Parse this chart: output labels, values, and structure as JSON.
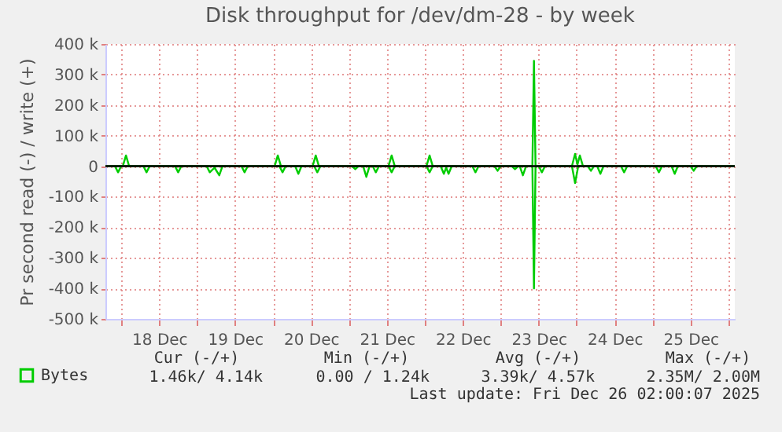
{
  "chart_data": {
    "type": "line",
    "title": "Disk throughput for /dev/dm-28 - by week",
    "ylabel": "Pr second read (-) / write (+)",
    "xlim": [
      "2025-12-17T19:00",
      "2025-12-26T02:00"
    ],
    "xticks": [
      {
        "value": "2025-12-18T00:00",
        "label": null
      },
      {
        "value": "2025-12-18T12:00",
        "label": "18 Dec"
      },
      {
        "value": "2025-12-19T00:00",
        "label": null
      },
      {
        "value": "2025-12-19T12:00",
        "label": "19 Dec"
      },
      {
        "value": "2025-12-20T00:00",
        "label": null
      },
      {
        "value": "2025-12-20T12:00",
        "label": "20 Dec"
      },
      {
        "value": "2025-12-21T00:00",
        "label": null
      },
      {
        "value": "2025-12-21T12:00",
        "label": "21 Dec"
      },
      {
        "value": "2025-12-22T00:00",
        "label": null
      },
      {
        "value": "2025-12-22T12:00",
        "label": "22 Dec"
      },
      {
        "value": "2025-12-23T00:00",
        "label": null
      },
      {
        "value": "2025-12-23T12:00",
        "label": "23 Dec"
      },
      {
        "value": "2025-12-24T00:00",
        "label": null
      },
      {
        "value": "2025-12-24T12:00",
        "label": "24 Dec"
      },
      {
        "value": "2025-12-25T00:00",
        "label": null
      },
      {
        "value": "2025-12-25T12:00",
        "label": "25 Dec"
      },
      {
        "value": "2025-12-26T00:00",
        "label": null
      }
    ],
    "ylim": [
      -500000,
      400000
    ],
    "yticks": [
      {
        "value": -500000,
        "label": "-500 k"
      },
      {
        "value": -400000,
        "label": "-400 k"
      },
      {
        "value": -300000,
        "label": "-300 k"
      },
      {
        "value": -200000,
        "label": "-200 k"
      },
      {
        "value": -100000,
        "label": "-100 k"
      },
      0,
      {
        "value": 100000,
        "label": "100 k"
      },
      {
        "value": 200000,
        "label": "200 k"
      },
      {
        "value": 300000,
        "label": "300 k"
      },
      {
        "value": 400000,
        "label": "400 k"
      }
    ],
    "grid": true,
    "legend": "bottom left",
    "series": [
      {
        "name": "Bytes",
        "color": "#00cc00",
        "x": [
          "2025-12-17T19:00",
          "2025-12-18T00:30",
          "2025-12-18T01:30",
          "2025-12-18T02:30",
          "2025-12-20T00:30",
          "2025-12-20T01:30",
          "2025-12-20T02:30",
          "2025-12-20T12:30",
          "2025-12-20T13:30",
          "2025-12-20T14:30",
          "2025-12-21T12:30",
          "2025-12-21T13:30",
          "2025-12-21T14:30",
          "2025-12-22T00:30",
          "2025-12-22T01:30",
          "2025-12-22T02:30",
          "2025-12-23T10:00",
          "2025-12-23T10:30",
          "2025-12-23T11:00",
          "2025-12-23T22:30",
          "2025-12-23T23:30",
          "2025-12-24T00:15",
          "2025-12-24T01:00",
          "2025-12-24T02:00",
          "2025-12-26T02:00"
        ],
        "values": [
          0,
          0,
          35000,
          0,
          0,
          35000,
          0,
          0,
          35000,
          0,
          0,
          35000,
          0,
          0,
          35000,
          0,
          0,
          345000,
          0,
          0,
          40000,
          5000,
          35000,
          0,
          0
        ]
      },
      {
        "color": "#00cc00",
        "x": [
          "2025-12-17T19:00",
          "2025-12-17T22:00",
          "2025-12-17T23:00",
          "2025-12-18T00:00",
          "2025-12-18T07:00",
          "2025-12-18T08:00",
          "2025-12-18T09:00",
          "2025-12-18T17:00",
          "2025-12-18T18:00",
          "2025-12-18T19:00",
          "2025-12-19T03:00",
          "2025-12-19T04:00",
          "2025-12-19T05:30",
          "2025-12-19T07:00",
          "2025-12-19T08:00",
          "2025-12-19T14:00",
          "2025-12-19T15:00",
          "2025-12-19T16:00",
          "2025-12-20T02:00",
          "2025-12-20T03:00",
          "2025-12-20T04:00",
          "2025-12-20T07:00",
          "2025-12-20T08:00",
          "2025-12-20T09:00",
          "2025-12-20T13:00",
          "2025-12-20T14:00",
          "2025-12-20T15:00",
          "2025-12-21T01:00",
          "2025-12-21T02:00",
          "2025-12-21T03:00",
          "2025-12-21T04:30",
          "2025-12-21T05:30",
          "2025-12-21T06:30",
          "2025-12-21T07:30",
          "2025-12-21T08:30",
          "2025-12-21T09:30",
          "2025-12-21T12:30",
          "2025-12-21T13:30",
          "2025-12-21T14:30",
          "2025-12-22T00:30",
          "2025-12-22T01:30",
          "2025-12-22T02:30",
          "2025-12-22T05:00",
          "2025-12-22T06:00",
          "2025-12-22T06:45",
          "2025-12-22T07:30",
          "2025-12-22T08:30",
          "2025-12-22T15:00",
          "2025-12-22T16:00",
          "2025-12-22T17:00",
          "2025-12-22T22:00",
          "2025-12-22T23:00",
          "2025-12-23T00:00",
          "2025-12-23T03:30",
          "2025-12-23T04:30",
          "2025-12-23T05:30",
          "2025-12-23T06:00",
          "2025-12-23T07:00",
          "2025-12-23T08:00",
          "2025-12-23T10:00",
          "2025-12-23T10:30",
          "2025-12-23T11:00",
          "2025-12-23T12:00",
          "2025-12-23T13:00",
          "2025-12-23T14:00",
          "2025-12-23T22:30",
          "2025-12-23T23:30",
          "2025-12-24T00:30",
          "2025-12-24T03:30",
          "2025-12-24T04:30",
          "2025-12-24T05:30",
          "2025-12-24T06:30",
          "2025-12-24T07:30",
          "2025-12-24T08:30",
          "2025-12-24T14:00",
          "2025-12-24T15:00",
          "2025-12-24T16:00",
          "2025-12-25T01:00",
          "2025-12-25T02:00",
          "2025-12-25T03:00",
          "2025-12-25T06:00",
          "2025-12-25T07:00",
          "2025-12-25T08:00",
          "2025-12-25T12:00",
          "2025-12-25T13:00",
          "2025-12-25T14:00",
          "2025-12-26T02:00"
        ],
        "values": [
          0,
          0,
          -20000,
          0,
          0,
          -20000,
          0,
          0,
          -20000,
          0,
          0,
          -20000,
          -5000,
          -30000,
          0,
          0,
          -20000,
          0,
          0,
          -20000,
          0,
          0,
          -25000,
          0,
          0,
          -20000,
          0,
          0,
          -10000,
          0,
          0,
          -35000,
          0,
          0,
          -20000,
          0,
          0,
          -20000,
          0,
          0,
          -20000,
          0,
          0,
          -25000,
          -5000,
          -25000,
          0,
          0,
          -20000,
          0,
          0,
          -15000,
          0,
          0,
          -10000,
          0,
          0,
          -30000,
          0,
          0,
          -400000,
          0,
          0,
          -20000,
          0,
          0,
          -55000,
          0,
          0,
          -15000,
          0,
          0,
          -25000,
          0,
          0,
          -20000,
          0,
          0,
          -20000,
          0,
          0,
          -25000,
          0,
          0,
          -15000,
          0,
          0
        ]
      }
    ],
    "ref_lines": [
      {
        "axis": "y",
        "value": 0,
        "color": "#000000"
      }
    ],
    "annotations": [
      "Cur (-/+)",
      "Min (-/+)",
      "Avg (-/+)",
      "Max (-/+)",
      "1.46k/  4.14k",
      "0.00 /  1.24k",
      "3.39k/  4.57k",
      "2.35M/  2.00M",
      "Last update: Fri Dec 26 02:00:07 2025"
    ]
  }
}
